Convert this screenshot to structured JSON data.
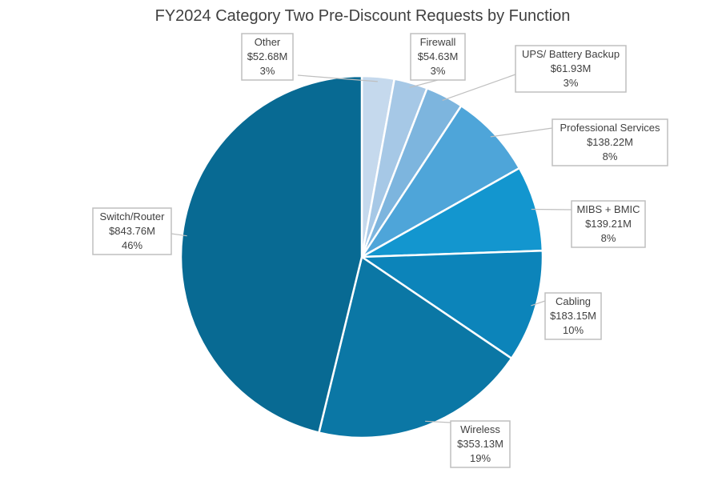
{
  "chart_data": {
    "type": "pie",
    "title": "FY2024 Category Two Pre-Discount Requests by Function",
    "slices": [
      {
        "name": "Other",
        "value": 52.68,
        "value_label": "$52.68M",
        "percent_label": "3%",
        "color": "#c5d9ed"
      },
      {
        "name": "Firewall",
        "value": 54.63,
        "value_label": "$54.63M",
        "percent_label": "3%",
        "color": "#a6c8e6"
      },
      {
        "name": "UPS/ Battery Backup",
        "value": 61.93,
        "value_label": "$61.93M",
        "percent_label": "3%",
        "color": "#7db5de"
      },
      {
        "name": "Professional Services",
        "value": 138.22,
        "value_label": "$138.22M",
        "percent_label": "8%",
        "color": "#4ea5d9"
      },
      {
        "name": "MIBS + BMIC",
        "value": 139.21,
        "value_label": "$139.21M",
        "percent_label": "8%",
        "color": "#1396cf"
      },
      {
        "name": "Cabling",
        "value": 183.15,
        "value_label": "$183.15M",
        "percent_label": "10%",
        "color": "#0c84ba"
      },
      {
        "name": "Wireless",
        "value": 353.13,
        "value_label": "$353.13M",
        "percent_label": "19%",
        "color": "#0b77a5"
      },
      {
        "name": "Switch/Router",
        "value": 843.76,
        "value_label": "$843.76M",
        "percent_label": "46%",
        "color": "#086a93"
      }
    ]
  }
}
